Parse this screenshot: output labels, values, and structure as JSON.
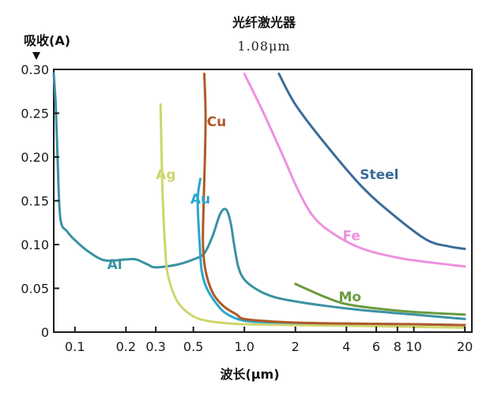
{
  "chart_data": {
    "type": "line",
    "title": "光纤激光器",
    "subtitle": "1.08μm",
    "ylabel": "吸收(A)",
    "xlabel": "波长(μm)",
    "x_scale": "log",
    "xlim": [
      0.075,
      22
    ],
    "ylim": [
      0,
      0.3
    ],
    "x_ticks": [
      0.1,
      0.2,
      0.3,
      0.5,
      1.0,
      2,
      4,
      6,
      8,
      10,
      20
    ],
    "x_tick_labels": [
      "0.1",
      "0.2",
      "0.3",
      "0.5",
      "1.0",
      "2",
      "4",
      "6",
      "8",
      "10",
      "20"
    ],
    "y_ticks": [
      0,
      0.05,
      0.1,
      0.15,
      0.2,
      0.25,
      0.3
    ],
    "y_tick_labels": [
      "0",
      "0.05",
      "0.10",
      "0.15",
      "0.20",
      "0.25",
      "0.30"
    ],
    "grid": false,
    "legend": "inline labels",
    "series": [
      {
        "name": "Al",
        "color": "#3a92a3",
        "label_at": [
          0.155,
          0.072
        ],
        "points": [
          [
            0.075,
            0.295
          ],
          [
            0.077,
            0.26
          ],
          [
            0.079,
            0.2
          ],
          [
            0.082,
            0.13
          ],
          [
            0.09,
            0.115
          ],
          [
            0.1,
            0.105
          ],
          [
            0.12,
            0.092
          ],
          [
            0.15,
            0.082
          ],
          [
            0.2,
            0.083
          ],
          [
            0.23,
            0.083
          ],
          [
            0.27,
            0.077
          ],
          [
            0.3,
            0.074
          ],
          [
            0.4,
            0.077
          ],
          [
            0.5,
            0.083
          ],
          [
            0.58,
            0.09
          ],
          [
            0.65,
            0.11
          ],
          [
            0.72,
            0.135
          ],
          [
            0.78,
            0.14
          ],
          [
            0.83,
            0.125
          ],
          [
            0.87,
            0.1
          ],
          [
            0.92,
            0.075
          ],
          [
            1.0,
            0.06
          ],
          [
            1.2,
            0.048
          ],
          [
            1.5,
            0.04
          ],
          [
            2.0,
            0.035
          ],
          [
            3.0,
            0.03
          ],
          [
            5.0,
            0.025
          ],
          [
            10.0,
            0.02
          ],
          [
            20.0,
            0.015
          ]
        ]
      },
      {
        "name": "Ag",
        "color": "#cfd66c",
        "label_at": [
          0.3,
          0.175
        ],
        "points": [
          [
            0.32,
            0.26
          ],
          [
            0.325,
            0.2
          ],
          [
            0.33,
            0.15
          ],
          [
            0.34,
            0.1
          ],
          [
            0.35,
            0.07
          ],
          [
            0.38,
            0.045
          ],
          [
            0.42,
            0.03
          ],
          [
            0.5,
            0.018
          ],
          [
            0.6,
            0.013
          ],
          [
            0.8,
            0.01
          ],
          [
            1.0,
            0.009
          ],
          [
            2.0,
            0.008
          ],
          [
            5.0,
            0.007
          ],
          [
            10.0,
            0.006
          ],
          [
            20.0,
            0.005
          ]
        ]
      },
      {
        "name": "Au",
        "color": "#27a8cf",
        "label_at": [
          0.48,
          0.147
        ],
        "points": [
          [
            0.55,
            0.175
          ],
          [
            0.53,
            0.15
          ],
          [
            0.545,
            0.1
          ],
          [
            0.56,
            0.07
          ],
          [
            0.6,
            0.05
          ],
          [
            0.7,
            0.03
          ],
          [
            0.8,
            0.02
          ],
          [
            1.0,
            0.013
          ],
          [
            1.5,
            0.011
          ],
          [
            3.0,
            0.01
          ],
          [
            10.0,
            0.009
          ],
          [
            20.0,
            0.008
          ]
        ]
      },
      {
        "name": "Cu",
        "color": "#b05a28",
        "label_at": [
          0.6,
          0.235
        ],
        "points": [
          [
            0.58,
            0.295
          ],
          [
            0.59,
            0.25
          ],
          [
            0.585,
            0.2
          ],
          [
            0.575,
            0.15
          ],
          [
            0.57,
            0.1
          ],
          [
            0.59,
            0.07
          ],
          [
            0.65,
            0.045
          ],
          [
            0.75,
            0.03
          ],
          [
            0.9,
            0.02
          ],
          [
            1.0,
            0.015
          ],
          [
            1.5,
            0.012
          ],
          [
            3.0,
            0.01
          ],
          [
            10.0,
            0.009
          ],
          [
            20.0,
            0.008
          ]
        ]
      },
      {
        "name": "Fe",
        "color": "#ee90e0",
        "label_at": [
          3.8,
          0.105
        ],
        "points": [
          [
            1.0,
            0.295
          ],
          [
            1.3,
            0.25
          ],
          [
            1.7,
            0.2
          ],
          [
            2.1,
            0.16
          ],
          [
            2.6,
            0.13
          ],
          [
            3.5,
            0.11
          ],
          [
            5.0,
            0.095
          ],
          [
            8.0,
            0.085
          ],
          [
            12.0,
            0.08
          ],
          [
            20.0,
            0.075
          ]
        ]
      },
      {
        "name": "Steel",
        "color": "#3b6c99",
        "label_at": [
          4.8,
          0.175
        ],
        "points": [
          [
            1.6,
            0.295
          ],
          [
            2.0,
            0.26
          ],
          [
            3.0,
            0.215
          ],
          [
            5.0,
            0.165
          ],
          [
            8.0,
            0.13
          ],
          [
            12.0,
            0.105
          ],
          [
            16.0,
            0.098
          ],
          [
            20.0,
            0.095
          ]
        ]
      },
      {
        "name": "Mo",
        "color": "#6b9a3f",
        "label_at": [
          3.6,
          0.035
        ],
        "points": [
          [
            2.0,
            0.055
          ],
          [
            3.0,
            0.04
          ],
          [
            4.0,
            0.032
          ],
          [
            6.0,
            0.027
          ],
          [
            10.0,
            0.023
          ],
          [
            20.0,
            0.02
          ]
        ]
      }
    ]
  }
}
